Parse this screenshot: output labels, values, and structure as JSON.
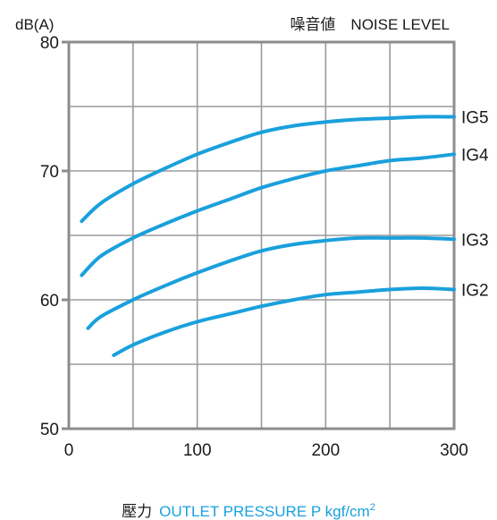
{
  "chart_data": {
    "type": "line",
    "title": "噪音値　NOISE LEVEL",
    "ylabel": "dB(A)",
    "xlabel": {
      "jp": "壓力",
      "en": "OUTLET PRESSURE P kgf/cm",
      "superscript": "2"
    },
    "xlim": [
      0,
      300
    ],
    "ylim": [
      50,
      80
    ],
    "x_ticks": [
      0,
      100,
      200,
      300
    ],
    "y_ticks": [
      50,
      60,
      70,
      80
    ],
    "x_gridlines": [
      50,
      100,
      150,
      200,
      250
    ],
    "y_gridlines": [
      55,
      60,
      65,
      70,
      75
    ],
    "grid": true,
    "line_color": "#1aa0dc",
    "series": [
      {
        "name": "IG5",
        "points": [
          [
            10,
            66.1
          ],
          [
            25,
            67.5
          ],
          [
            50,
            69.0
          ],
          [
            75,
            70.2
          ],
          [
            100,
            71.3
          ],
          [
            125,
            72.2
          ],
          [
            150,
            73.0
          ],
          [
            175,
            73.5
          ],
          [
            200,
            73.8
          ],
          [
            225,
            74.0
          ],
          [
            250,
            74.1
          ],
          [
            275,
            74.2
          ],
          [
            300,
            74.2
          ]
        ]
      },
      {
        "name": "IG4",
        "points": [
          [
            10,
            61.9
          ],
          [
            25,
            63.4
          ],
          [
            50,
            64.8
          ],
          [
            75,
            65.9
          ],
          [
            100,
            66.9
          ],
          [
            125,
            67.8
          ],
          [
            150,
            68.7
          ],
          [
            175,
            69.4
          ],
          [
            200,
            70.0
          ],
          [
            225,
            70.4
          ],
          [
            250,
            70.8
          ],
          [
            275,
            71.0
          ],
          [
            300,
            71.3
          ]
        ]
      },
      {
        "name": "IG3",
        "points": [
          [
            15,
            57.8
          ],
          [
            25,
            58.7
          ],
          [
            50,
            60.0
          ],
          [
            75,
            61.1
          ],
          [
            100,
            62.1
          ],
          [
            125,
            63.0
          ],
          [
            150,
            63.8
          ],
          [
            175,
            64.3
          ],
          [
            200,
            64.6
          ],
          [
            225,
            64.8
          ],
          [
            250,
            64.8
          ],
          [
            275,
            64.8
          ],
          [
            300,
            64.7
          ]
        ]
      },
      {
        "name": "IG2",
        "points": [
          [
            35,
            55.7
          ],
          [
            50,
            56.5
          ],
          [
            75,
            57.5
          ],
          [
            100,
            58.3
          ],
          [
            125,
            58.9
          ],
          [
            150,
            59.5
          ],
          [
            175,
            60.0
          ],
          [
            200,
            60.4
          ],
          [
            225,
            60.6
          ],
          [
            250,
            60.8
          ],
          [
            275,
            60.9
          ],
          [
            300,
            60.8
          ]
        ]
      }
    ]
  }
}
